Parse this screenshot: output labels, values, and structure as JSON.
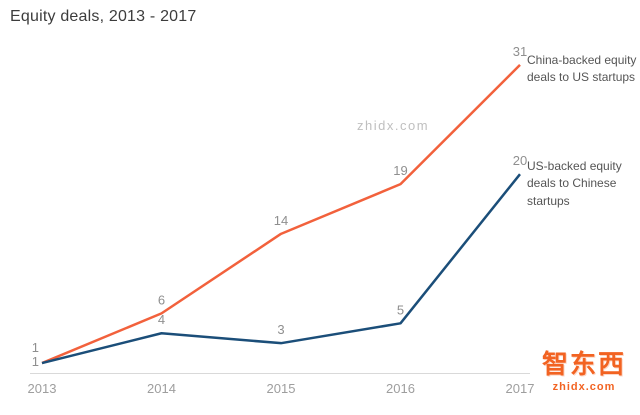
{
  "title": "Equity deals, 2013 - 2017",
  "watermark": "zhidx.com",
  "logo": {
    "text": "智东西",
    "site": "zhidx.com"
  },
  "colors": {
    "axis": "#d9d9d9",
    "tick": "#9e9e9e",
    "data_label": "#8f8f8f",
    "title": "#3c3c3c",
    "annotation": "#555555",
    "brand": "#f26322"
  },
  "chart_data": {
    "type": "line",
    "title": "Equity deals, 2013 - 2017",
    "x": [
      "2013",
      "2014",
      "2015",
      "2016",
      "2017"
    ],
    "series": [
      {
        "name": "China-backed equity deals to US startups",
        "color": "#f2613c",
        "values": [
          1,
          6,
          14,
          19,
          31
        ]
      },
      {
        "name": "US-backed equity deals to Chinese startups",
        "color": "#1b4e79",
        "values": [
          1,
          4,
          3,
          5,
          20
        ]
      }
    ],
    "xlabel": "",
    "ylabel": "",
    "ylim": [
      0,
      33
    ],
    "grid": false,
    "legend_position": "right-annotations",
    "data_labels": true
  }
}
